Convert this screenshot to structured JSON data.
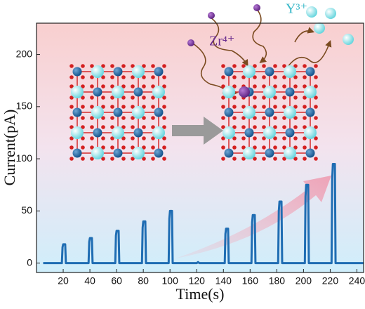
{
  "chart_data": {
    "type": "line",
    "x_label": "Time(s)",
    "y_label": "Current(pA)",
    "annotations": [
      "Zr⁴⁺",
      "Y³⁺"
    ],
    "xlim": [
      0,
      245
    ],
    "ylim": [
      -9,
      230
    ],
    "xticks": [
      20,
      40,
      60,
      80,
      100,
      120,
      140,
      160,
      180,
      200,
      220,
      240
    ],
    "yticks": [
      0,
      50,
      100,
      150,
      200
    ],
    "series": [
      {
        "color": "#1f6db3",
        "x": [
          5,
          19,
          19.5,
          20,
          21.5,
          22,
          39,
          39.5,
          40,
          41.5,
          42,
          59,
          59.5,
          60,
          61.5,
          62,
          79,
          79.5,
          80,
          81.5,
          82,
          99,
          99.5,
          100,
          101.5,
          102,
          120,
          121,
          122,
          141,
          141.5,
          142,
          143.5,
          144,
          161,
          161.5,
          162,
          163.5,
          164,
          181,
          181.5,
          182,
          183.5,
          184,
          201,
          201.5,
          202,
          203.5,
          204,
          221,
          221.5,
          222,
          223.5,
          224,
          245
        ],
        "values": [
          0,
          0,
          15.3,
          18,
          18,
          0,
          0,
          20.4,
          24,
          24,
          0,
          0,
          26.4,
          31,
          31,
          0,
          0,
          34,
          40,
          40,
          0,
          0,
          42.5,
          50,
          50,
          0,
          0,
          1,
          0,
          0,
          28,
          33,
          33,
          0,
          0,
          39,
          46,
          46,
          0,
          0,
          50,
          59,
          59,
          0,
          0,
          64,
          75,
          75,
          0,
          0,
          81,
          95,
          95,
          0,
          0
        ]
      }
    ]
  }
}
